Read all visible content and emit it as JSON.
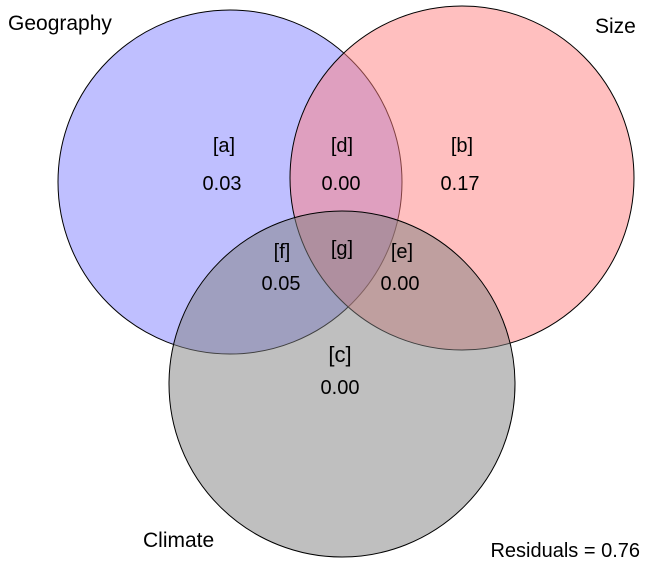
{
  "sets": [
    {
      "key": "geography",
      "label": "Geography",
      "color": "#8080ff"
    },
    {
      "key": "size",
      "label": "Size",
      "color": "#ff8080"
    },
    {
      "key": "climate",
      "label": "Climate",
      "color": "#808080"
    }
  ],
  "regions": {
    "a": {
      "letter": "[a]",
      "value": "0.03"
    },
    "b": {
      "letter": "[b]",
      "value": "0.17"
    },
    "c": {
      "letter": "[c]",
      "value": "0.00"
    },
    "d": {
      "letter": "[d]",
      "value": "0.00"
    },
    "e": {
      "letter": "[e]",
      "value": "0.00"
    },
    "f": {
      "letter": "[f]",
      "value": "0.05"
    },
    "g": {
      "letter": "[g]",
      "value": ""
    }
  },
  "residuals": "Residuals = 0.76",
  "fill_opacity": 0.5,
  "stroke_color": "#000000"
}
